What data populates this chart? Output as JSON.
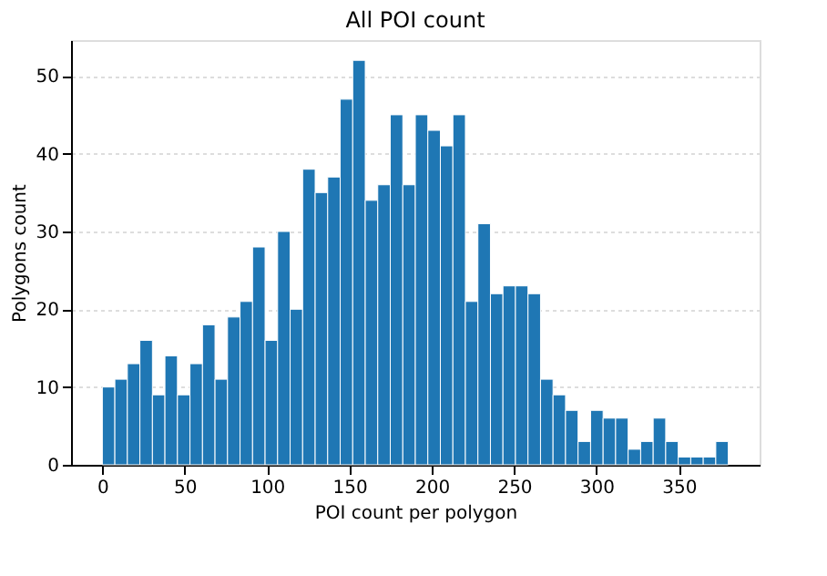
{
  "chart_data": {
    "type": "histogram",
    "title": "All POI count",
    "xlabel": "POI count per polygon",
    "ylabel": "Polygons count",
    "bins": [
      0,
      7.6,
      15.2,
      22.8,
      30.4,
      38,
      45.6,
      53.2,
      60.8,
      68.4,
      76,
      83.6,
      91.2,
      98.8,
      106.4,
      114,
      121.6,
      129.2,
      136.8,
      144.4,
      152,
      159.6,
      167.2,
      174.8,
      182.4,
      190,
      197.6,
      205.2,
      212.8,
      220.4,
      228,
      235.6,
      243.2,
      250.8,
      258.4,
      266,
      273.6,
      281.2,
      288.8,
      296.4,
      304,
      311.6,
      319.2,
      326.8,
      334.4,
      342,
      349.6,
      357.2,
      364.8,
      372.4,
      380
    ],
    "values": [
      10,
      11,
      13,
      16,
      9,
      14,
      9,
      13,
      18,
      11,
      19,
      21,
      28,
      16,
      30,
      20,
      38,
      35,
      37,
      47,
      52,
      34,
      36,
      45,
      36,
      45,
      43,
      41,
      45,
      21,
      31,
      22,
      23,
      23,
      22,
      11,
      9,
      7,
      3,
      7,
      6,
      6,
      2,
      3,
      6,
      3,
      1,
      1,
      1,
      3
    ],
    "color": "#1f77b4",
    "xlim": [
      -19,
      399
    ],
    "ylim": [
      0,
      54.6
    ],
    "xticks": [
      0,
      50,
      100,
      150,
      200,
      250,
      300,
      350
    ],
    "yticks": [
      0,
      10,
      20,
      30,
      40,
      50
    ],
    "grid": "y"
  }
}
